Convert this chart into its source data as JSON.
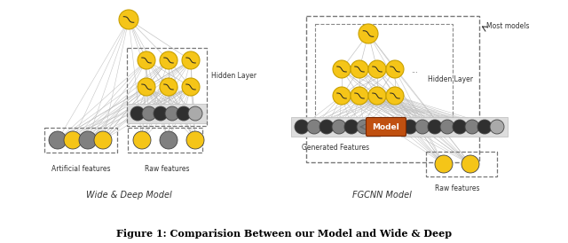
{
  "fig_width": 6.4,
  "fig_height": 2.74,
  "dpi": 100,
  "bg_color": "#ffffff",
  "node_color_yellow": "#F5C518",
  "node_color_dark": "#303030",
  "node_color_gray": "#808080",
  "node_color_light_gray": "#AAAAAA",
  "node_edge_yellow": "#C8A000",
  "model_box_color": "#C05010",
  "model_text_color": "#ffffff",
  "line_color": "#AAAAAA",
  "label_wide_deep": "Wide & Deep Model",
  "label_fgcnn": "FGCNN Model",
  "label_hidden_left": "Hidden Layer",
  "label_hidden_right": "Hidden Layer",
  "label_artif": "Artificial features",
  "label_raw_left": "Raw features",
  "label_gen": "Generated Features",
  "label_raw_right": "Raw features",
  "label_most": "Most models",
  "label_model": "Model",
  "caption": "Figure 1: Comparision Between our Model and Wide & Deep"
}
